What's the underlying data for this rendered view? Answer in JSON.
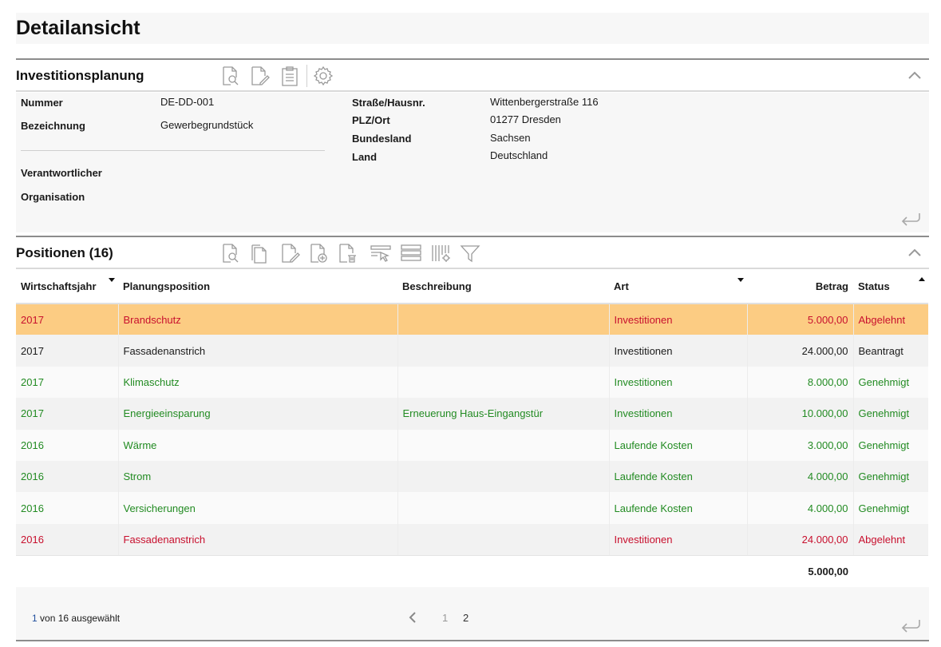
{
  "page": {
    "title": "Detailansicht"
  },
  "investition": {
    "title": "Investitionsplanung",
    "toolbar_icons": [
      "view-icon",
      "edit-icon",
      "clipboard-icon",
      "settings-icon"
    ],
    "fields_left": [
      {
        "label": "Nummer",
        "value": "DE-DD-001"
      },
      {
        "label": "Bezeichnung",
        "value": "Gewerbegrundstück"
      },
      {
        "label": "Verantwortlicher",
        "value": ""
      },
      {
        "label": "Organisation",
        "value": ""
      }
    ],
    "fields_right": [
      {
        "label": "Straße/Hausnr.",
        "value": "Wittenbergerstraße 116"
      },
      {
        "label": "PLZ/Ort",
        "value": "01277 Dresden"
      },
      {
        "label": "Bundesland",
        "value": "Sachsen"
      },
      {
        "label": "Land",
        "value": "Deutschland"
      }
    ]
  },
  "positionen": {
    "title": "Positionen (16)",
    "toolbar_icons": [
      "view-icon",
      "copy-icon",
      "edit-icon",
      "add-icon",
      "delete-icon",
      "select-row-icon",
      "rows-icon",
      "columns-settings-icon",
      "filter-icon"
    ],
    "columns": [
      {
        "label": "Wirtschaftsjahr",
        "sort": "desc"
      },
      {
        "label": "Planungsposition",
        "sort": ""
      },
      {
        "label": "Beschreibung",
        "sort": ""
      },
      {
        "label": "Art",
        "sort": "desc"
      },
      {
        "label": "Betrag",
        "sort": ""
      },
      {
        "label": "Status",
        "sort": "asc"
      }
    ],
    "rows": [
      {
        "jahr": "2017",
        "position": "Brandschutz",
        "beschreibung": "",
        "art": "Investitionen",
        "betrag": "5.000,00",
        "status": "Abgelehnt",
        "color": "#c8102e",
        "selected": true
      },
      {
        "jahr": "2017",
        "position": "Fassadenanstrich",
        "beschreibung": "",
        "art": "Investitionen",
        "betrag": "24.000,00",
        "status": "Beantragt",
        "color": "#1a1a1a",
        "selected": false
      },
      {
        "jahr": "2017",
        "position": "Klimaschutz",
        "beschreibung": "",
        "art": "Investitionen",
        "betrag": "8.000,00",
        "status": "Genehmigt",
        "color": "#228b22",
        "selected": false
      },
      {
        "jahr": "2017",
        "position": "Energieeinsparung",
        "beschreibung": "Erneuerung Haus-Eingangstür",
        "art": "Investitionen",
        "betrag": "10.000,00",
        "status": "Genehmigt",
        "color": "#228b22",
        "selected": false
      },
      {
        "jahr": "2016",
        "position": "Wärme",
        "beschreibung": "",
        "art": "Laufende Kosten",
        "betrag": "3.000,00",
        "status": "Genehmigt",
        "color": "#228b22",
        "selected": false
      },
      {
        "jahr": "2016",
        "position": "Strom",
        "beschreibung": "",
        "art": "Laufende Kosten",
        "betrag": "4.000,00",
        "status": "Genehmigt",
        "color": "#228b22",
        "selected": false
      },
      {
        "jahr": "2016",
        "position": "Versicherungen",
        "beschreibung": "",
        "art": "Laufende Kosten",
        "betrag": "4.000,00",
        "status": "Genehmigt",
        "color": "#228b22",
        "selected": false
      },
      {
        "jahr": "2016",
        "position": "Fassadenanstrich",
        "beschreibung": "",
        "art": "Investitionen",
        "betrag": "24.000,00",
        "status": "Abgelehnt",
        "color": "#c8102e",
        "selected": false
      }
    ],
    "sum": "5.000,00",
    "footer": {
      "selected_count": "1",
      "selected_text": "von 16 ausgewählt",
      "pages": [
        "1",
        "2"
      ]
    }
  },
  "colors": {
    "selected_row": "#fccc83",
    "approved": "#228b22",
    "rejected": "#c8102e"
  }
}
